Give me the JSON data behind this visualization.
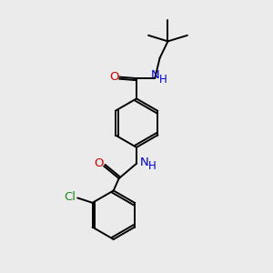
{
  "background_color": "#ebebeb",
  "line_color": "#000000",
  "bond_width": 1.4,
  "N_color": "#0000cc",
  "O_color": "#cc0000",
  "Cl_color": "#228B22",
  "font_size_atoms": 8.5,
  "figsize": [
    3.0,
    3.0
  ],
  "dpi": 100,
  "xlim": [
    0,
    10
  ],
  "ylim": [
    0,
    10
  ]
}
